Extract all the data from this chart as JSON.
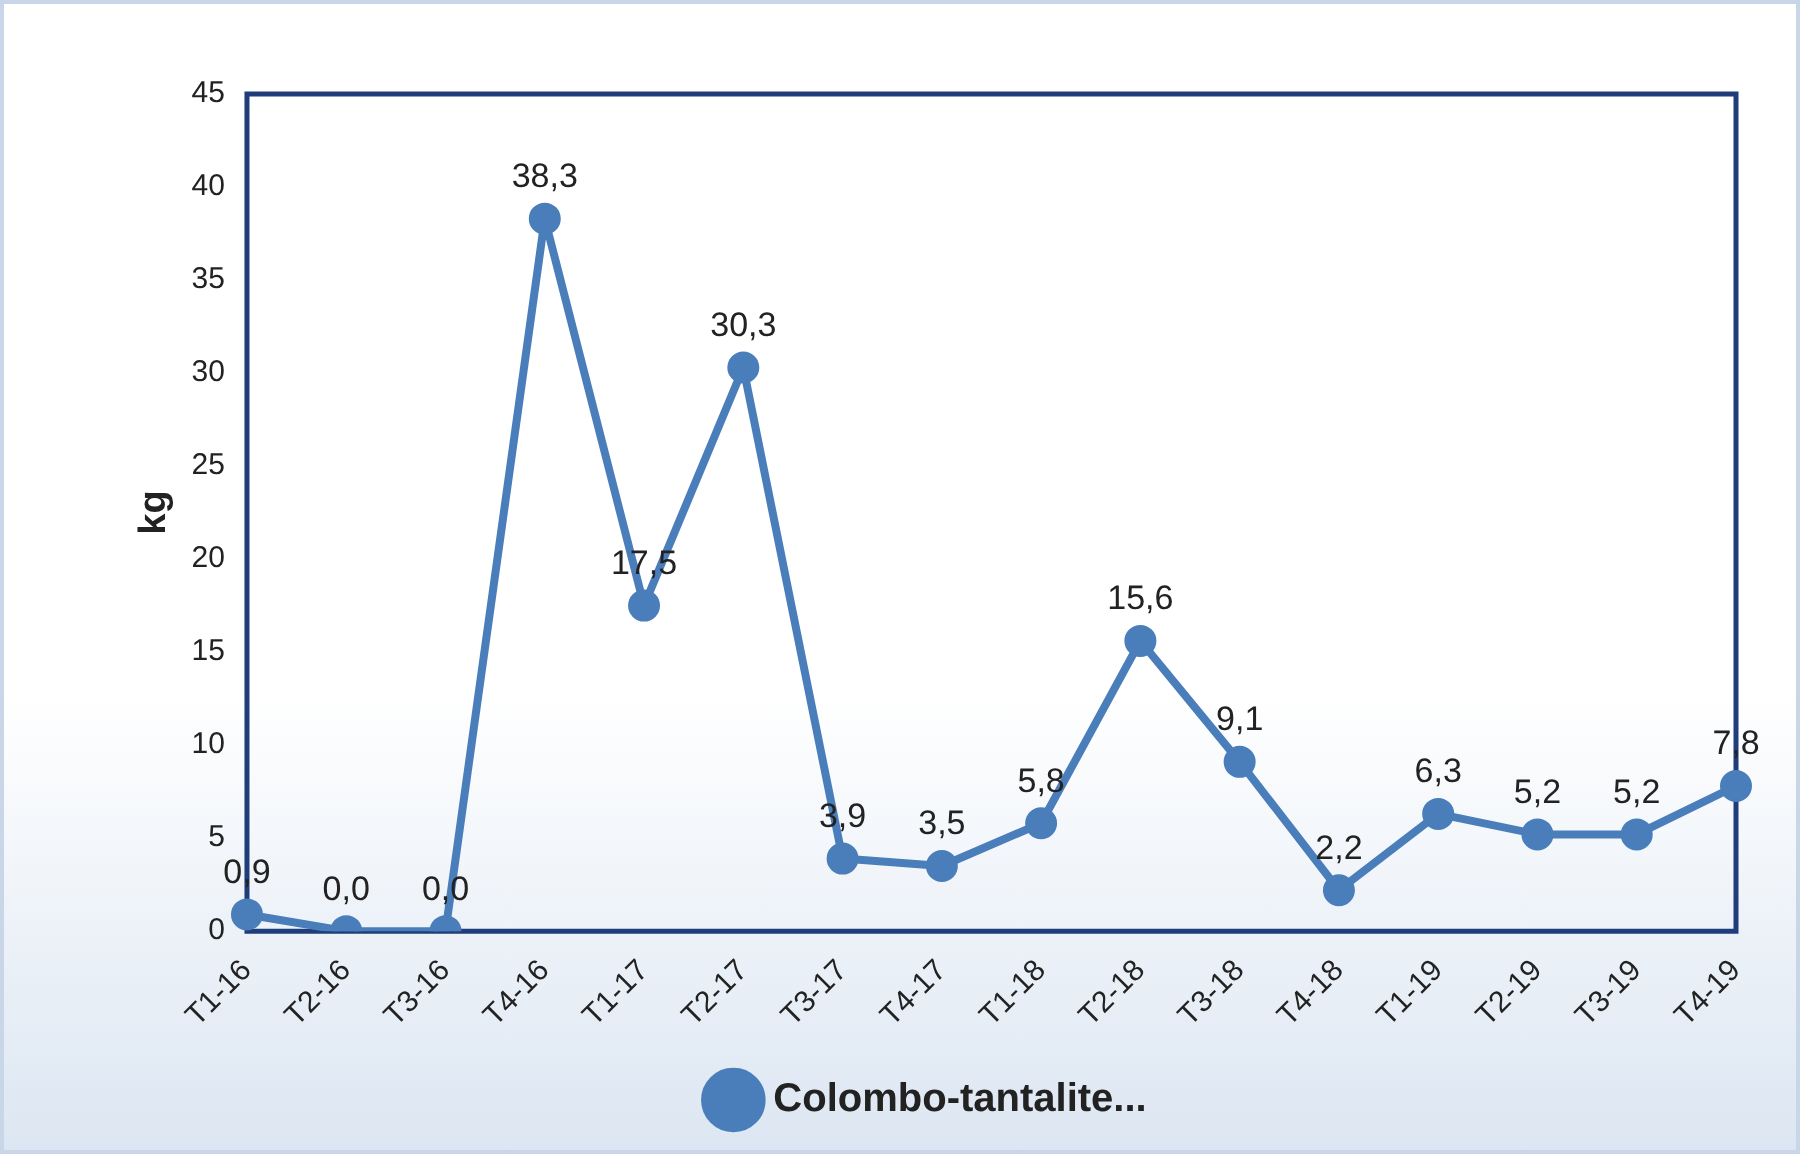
{
  "chart_data": {
    "type": "line",
    "ylabel": "kg",
    "categories": [
      "T1-16",
      "T2-16",
      "T3-16",
      "T4-16",
      "T1-17",
      "T2-17",
      "T3-17",
      "T4-17",
      "T1-18",
      "T2-18",
      "T3-18",
      "T4-18",
      "T1-19",
      "T2-19",
      "T3-19",
      "T4-19"
    ],
    "series": [
      {
        "name": "Colombo-tantalite...",
        "color": "#4a7ebb",
        "values": [
          0.9,
          0,
          0,
          38.3,
          17.5,
          30.3,
          3.9,
          3.5,
          5.8,
          15.6,
          9.1,
          2.2,
          6.3,
          5.2,
          5.2,
          7.8
        ],
        "value_labels": [
          "0,9",
          "0,0",
          "0,0",
          "38,3",
          "17,5",
          "30,3",
          "3,9",
          "3,5",
          "5,8",
          "15,6",
          "9,1",
          "2,2",
          "6,3",
          "5,2",
          "5,2",
          "7,8"
        ]
      }
    ],
    "ylim": [
      0,
      45
    ],
    "yticks": [
      0,
      5,
      10,
      15,
      20,
      25,
      30,
      35,
      40,
      45
    ],
    "grid": false,
    "legend": "bottom",
    "marker": "circle",
    "line_style": "solid"
  }
}
